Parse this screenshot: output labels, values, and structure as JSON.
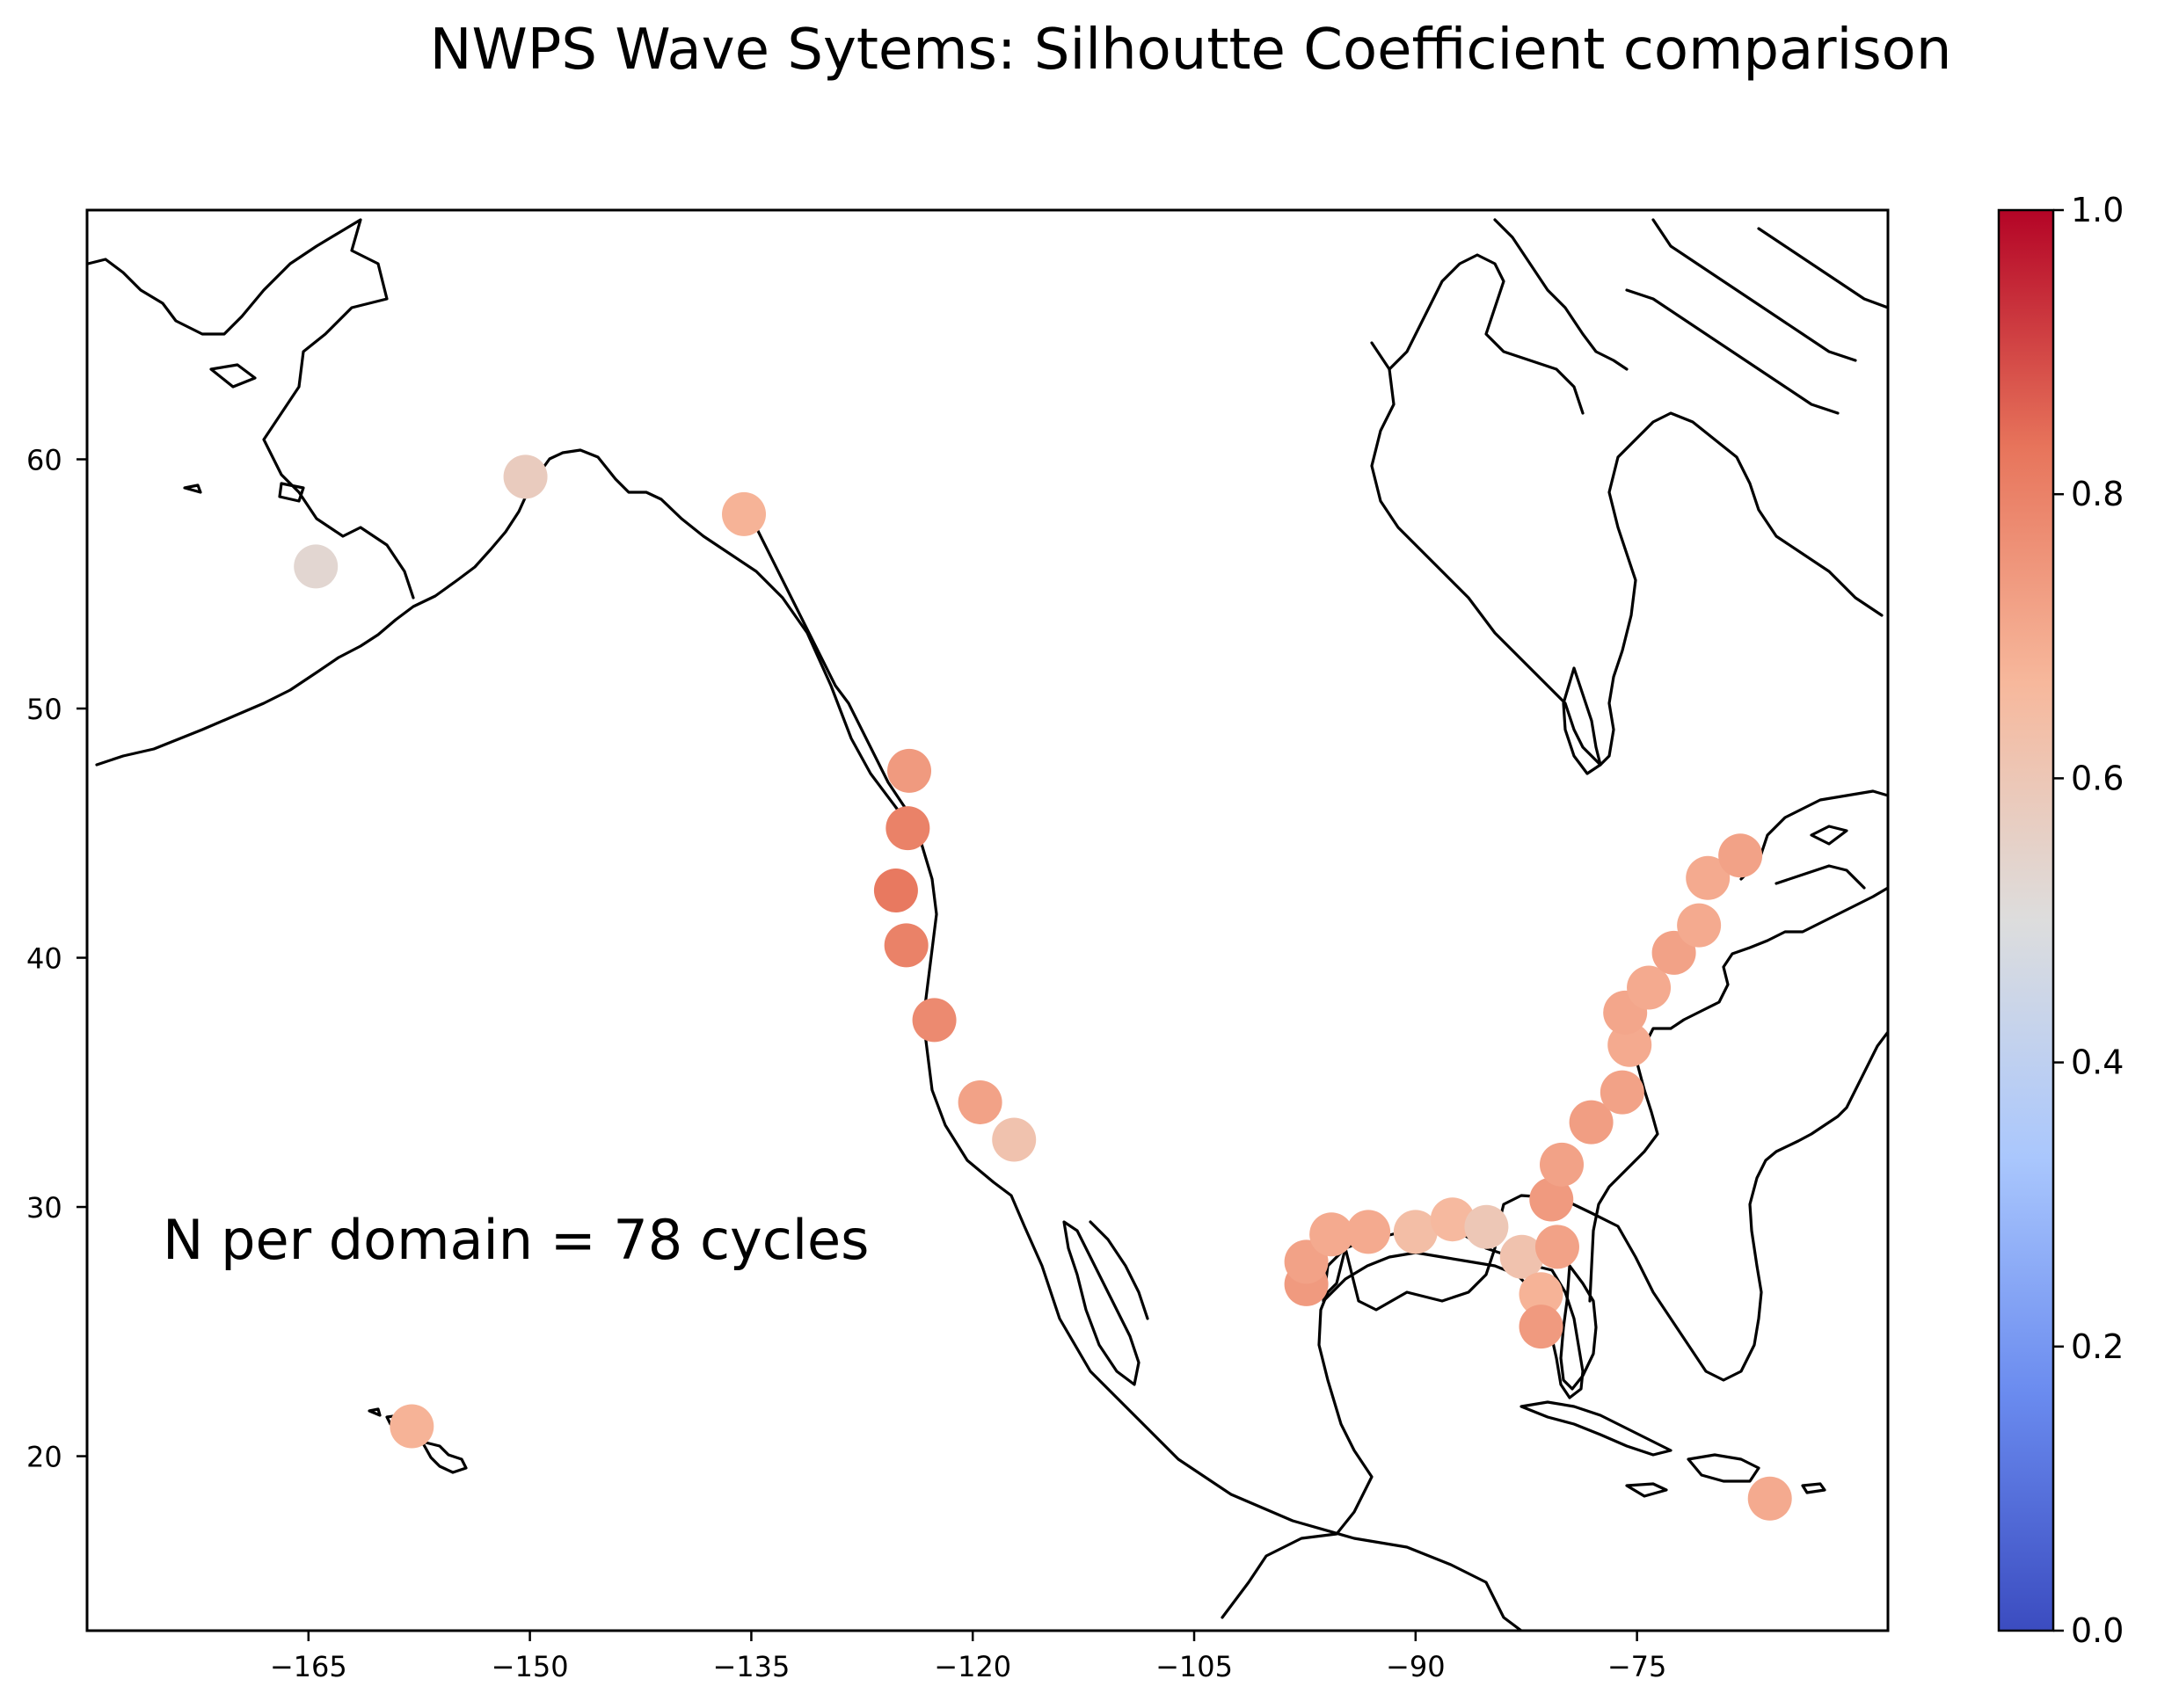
{
  "title": "NWPS Wave Sytems: Silhoutte Coefficient comparison",
  "annotation": "N per domain = 78 cycles",
  "chart_data": {
    "type": "scatter",
    "title": "NWPS Wave Sytems: Silhoutte Coefficient comparison",
    "xlabel": "",
    "ylabel": "",
    "projection": "cylindrical lon/lat map with coastlines",
    "xlim": [
      -180,
      -58
    ],
    "ylim": [
      13,
      70
    ],
    "x_ticks": [
      -165,
      -150,
      -135,
      -120,
      -105,
      -90,
      -75
    ],
    "y_ticks": [
      20,
      30,
      40,
      50,
      60
    ],
    "x_tick_labels": [
      "−165",
      "−150",
      "−135",
      "−120",
      "−105",
      "−90",
      "−75"
    ],
    "y_tick_labels": [
      "20",
      "30",
      "40",
      "50",
      "60"
    ],
    "colorbar": {
      "colormap": "coolwarm",
      "range": [
        0.0,
        1.0
      ],
      "ticks": [
        0.0,
        0.2,
        0.4,
        0.6,
        0.8,
        1.0
      ],
      "tick_labels": [
        "0.0",
        "0.2",
        "0.4",
        "0.6",
        "0.8",
        "1.0"
      ],
      "stops": [
        "#3b4cc0",
        "#6a8bef",
        "#aac7fd",
        "#dddddd",
        "#f7b89c",
        "#e7745b",
        "#b40426"
      ]
    },
    "points": [
      {
        "lon": -164.5,
        "lat": 55.7,
        "value": 0.53
      },
      {
        "lon": -150.3,
        "lat": 59.3,
        "value": 0.58
      },
      {
        "lon": -135.5,
        "lat": 57.8,
        "value": 0.68
      },
      {
        "lon": -124.3,
        "lat": 47.5,
        "value": 0.74
      },
      {
        "lon": -124.4,
        "lat": 45.2,
        "value": 0.8
      },
      {
        "lon": -125.2,
        "lat": 42.7,
        "value": 0.82
      },
      {
        "lon": -124.5,
        "lat": 40.5,
        "value": 0.8
      },
      {
        "lon": -122.6,
        "lat": 37.5,
        "value": 0.78
      },
      {
        "lon": -119.5,
        "lat": 34.2,
        "value": 0.72
      },
      {
        "lon": -117.2,
        "lat": 32.7,
        "value": 0.62
      },
      {
        "lon": -97.4,
        "lat": 26.9,
        "value": 0.74
      },
      {
        "lon": -97.4,
        "lat": 27.8,
        "value": 0.72
      },
      {
        "lon": -95.7,
        "lat": 28.9,
        "value": 0.7
      },
      {
        "lon": -93.2,
        "lat": 29.0,
        "value": 0.7
      },
      {
        "lon": -90.0,
        "lat": 29.0,
        "value": 0.64
      },
      {
        "lon": -87.5,
        "lat": 29.5,
        "value": 0.66
      },
      {
        "lon": -85.2,
        "lat": 29.2,
        "value": 0.6
      },
      {
        "lon": -82.8,
        "lat": 28.0,
        "value": 0.62
      },
      {
        "lon": -81.5,
        "lat": 26.5,
        "value": 0.68
      },
      {
        "lon": -81.5,
        "lat": 25.2,
        "value": 0.74
      },
      {
        "lon": -80.4,
        "lat": 28.4,
        "value": 0.72
      },
      {
        "lon": -80.8,
        "lat": 30.3,
        "value": 0.74
      },
      {
        "lon": -80.1,
        "lat": 31.7,
        "value": 0.72
      },
      {
        "lon": -78.1,
        "lat": 33.4,
        "value": 0.73
      },
      {
        "lon": -76.0,
        "lat": 34.6,
        "value": 0.72
      },
      {
        "lon": -75.5,
        "lat": 36.5,
        "value": 0.7
      },
      {
        "lon": -75.8,
        "lat": 37.8,
        "value": 0.71
      },
      {
        "lon": -74.2,
        "lat": 38.8,
        "value": 0.7
      },
      {
        "lon": -72.5,
        "lat": 40.2,
        "value": 0.72
      },
      {
        "lon": -70.8,
        "lat": 41.3,
        "value": 0.7
      },
      {
        "lon": -70.2,
        "lat": 43.2,
        "value": 0.7
      },
      {
        "lon": -68.0,
        "lat": 44.1,
        "value": 0.72
      },
      {
        "lon": -158.0,
        "lat": 21.2,
        "value": 0.68
      },
      {
        "lon": -66.0,
        "lat": 18.3,
        "value": 0.7
      }
    ]
  }
}
